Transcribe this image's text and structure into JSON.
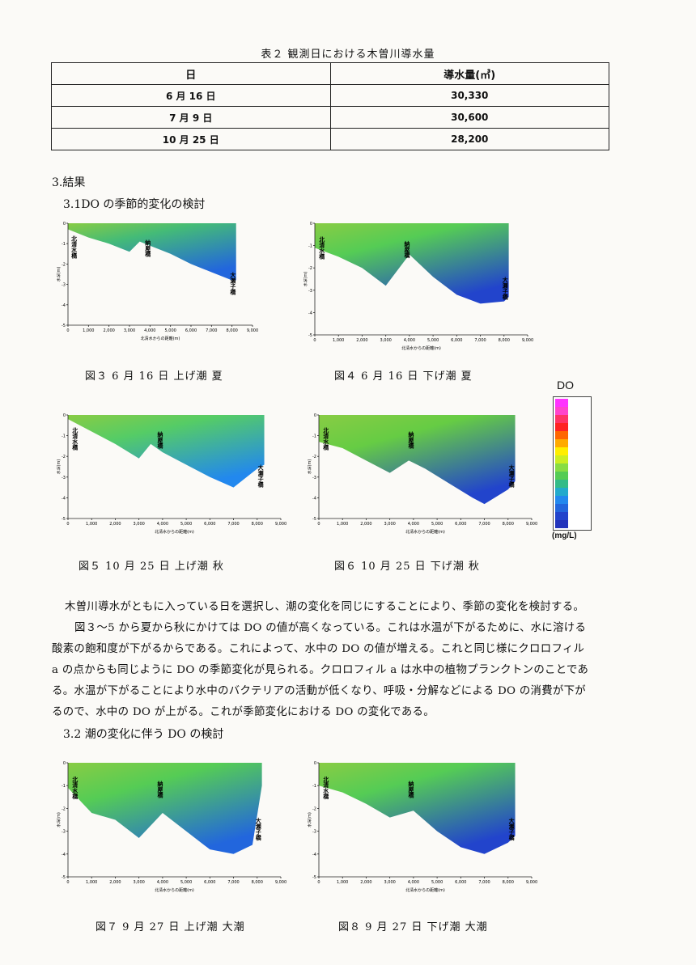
{
  "table2": {
    "caption": "表２ 観測日における木曽川導水量",
    "headers": [
      "日",
      "導水量(㎥)"
    ],
    "rows": [
      {
        "date": "6 月 16 日",
        "volume": "30,330"
      },
      {
        "date": "7 月 9 日",
        "volume": "30,600"
      },
      {
        "date": "10 月 25 日",
        "volume": "28,200"
      }
    ]
  },
  "sections": {
    "results": "3.結果",
    "s31": "3.1DO の季節的変化の検討",
    "s32": "3.2 潮の変化に伴う DO の検討"
  },
  "figures": [
    {
      "caption": "図３ 6 月 16 日 上げ潮 夏"
    },
    {
      "caption": "図４ 6 月 16 日 下げ潮 夏"
    },
    {
      "caption": "図５ 10 月 25 日 上げ潮 秋"
    },
    {
      "caption": "図６ 10 月 25 日 下げ潮 秋"
    },
    {
      "caption": "図７ 9 月 27 日 上げ潮 大潮"
    },
    {
      "caption": "図８ 9 月 27 日 下げ潮 大潮"
    }
  ],
  "chart_labels": {
    "kitashimizu": "北清水橋",
    "noya": "納屋橋",
    "osezoko": "大瀬子橋",
    "xlabel": "北清水からの距離(m)",
    "ylabel": "水深(m)"
  },
  "legend": {
    "title": "DO",
    "unit": "(mg/L)",
    "colors": [
      "#ff33ff",
      "#ff44cc",
      "#ff3366",
      "#ff2222",
      "#ff6600",
      "#ffaa00",
      "#ffee00",
      "#ccee22",
      "#88dd44",
      "#55cc55",
      "#33bb88",
      "#22aacc",
      "#2288ee",
      "#2266dd",
      "#2244cc",
      "#2233bb"
    ]
  },
  "paragraph": {
    "lines": [
      "木曽川導水がともに入っている日を選択し、潮の変化を同じにすることにより、季節の変化を検討する。",
      "図３～5 から夏から秋にかけては DO の値が高くなっている。これは水温が下がるために、水に溶ける",
      "酸素の飽和度が下がるからである。これによって、水中の DO の値が増える。これと同じ様にクロロフィル",
      "a の点からも同じように DO の季節変化が見られる。クロロフィル a は水中の植物プランクトンのことであ",
      "る。水温が下がることにより水中のバクテリアの活動が低くなり、呼吸・分解などによる DO の消費が下が",
      "るので、水中の DO が上がる。これが季節変化における DO の変化である。"
    ]
  },
  "chart_data": [
    {
      "type": "heatmap",
      "name": "fig3",
      "x_ticks": [
        "0",
        "1,000",
        "2,000",
        "3,000",
        "4,000",
        "5,000",
        "6,000",
        "7,000",
        "8,000",
        "9,000"
      ],
      "y_ticks": [
        "0",
        "-1",
        "-2",
        "-3",
        "-4",
        "-5"
      ],
      "xlim": [
        0,
        9000
      ],
      "ylim": [
        -5,
        0
      ],
      "bottom": [
        [
          0,
          -0.3
        ],
        [
          1000,
          -0.7
        ],
        [
          2000,
          -1.0
        ],
        [
          3000,
          -1.4
        ],
        [
          3500,
          -0.9
        ],
        [
          4000,
          -1.1
        ],
        [
          5000,
          -1.5
        ],
        [
          6000,
          -2.0
        ],
        [
          7000,
          -2.4
        ],
        [
          8000,
          -2.8
        ],
        [
          8200,
          -2.8
        ]
      ],
      "mid": "#44bb77",
      "deep": "#2266dd"
    },
    {
      "type": "heatmap",
      "name": "fig4",
      "x_ticks": [
        "0",
        "1,000",
        "2,000",
        "3,000",
        "4,000",
        "5,000",
        "6,000",
        "7,000",
        "8,000",
        "9,000"
      ],
      "y_ticks": [
        "0",
        "-1",
        "-2",
        "-3",
        "-4",
        "-5"
      ],
      "xlim": [
        0,
        9000
      ],
      "ylim": [
        -5,
        0
      ],
      "bottom": [
        [
          0,
          -1.1
        ],
        [
          1000,
          -1.5
        ],
        [
          2000,
          -2.0
        ],
        [
          3000,
          -2.8
        ],
        [
          4000,
          -1.4
        ],
        [
          5000,
          -2.4
        ],
        [
          6000,
          -3.2
        ],
        [
          7000,
          -3.6
        ],
        [
          8000,
          -3.5
        ],
        [
          8200,
          -3.3
        ]
      ],
      "mid": "#55cc55",
      "deep": "#2244cc"
    },
    {
      "type": "heatmap",
      "name": "fig5",
      "x_ticks": [
        "0",
        "1,000",
        "2,000",
        "3,000",
        "4,000",
        "5,000",
        "6,000",
        "7,000",
        "8,000",
        "9,000"
      ],
      "y_ticks": [
        "0",
        "-1",
        "-2",
        "-3",
        "-4",
        "-5"
      ],
      "xlim": [
        0,
        9000
      ],
      "ylim": [
        -5,
        0
      ],
      "bottom": [
        [
          0,
          -0.2
        ],
        [
          1000,
          -0.8
        ],
        [
          2000,
          -1.4
        ],
        [
          3000,
          -2.1
        ],
        [
          3500,
          -1.4
        ],
        [
          4000,
          -1.8
        ],
        [
          5000,
          -2.4
        ],
        [
          6000,
          -3.0
        ],
        [
          7000,
          -3.5
        ],
        [
          8000,
          -2.6
        ],
        [
          8300,
          -2.4
        ]
      ],
      "mid": "#55cc66",
      "deep": "#2288ee"
    },
    {
      "type": "heatmap",
      "name": "fig6",
      "x_ticks": [
        "0",
        "1,000",
        "2,000",
        "3,000",
        "4,000",
        "5,000",
        "6,000",
        "7,000",
        "8,000",
        "9,000"
      ],
      "y_ticks": [
        "0",
        "-1",
        "-2",
        "-3",
        "-4",
        "-5"
      ],
      "xlim": [
        0,
        9000
      ],
      "ylim": [
        -5,
        0
      ],
      "bottom": [
        [
          0,
          -1.3
        ],
        [
          1000,
          -1.6
        ],
        [
          2000,
          -2.2
        ],
        [
          3000,
          -2.8
        ],
        [
          3800,
          -2.2
        ],
        [
          4500,
          -2.6
        ],
        [
          5500,
          -3.3
        ],
        [
          6500,
          -4.0
        ],
        [
          7000,
          -4.3
        ],
        [
          8000,
          -3.6
        ],
        [
          8300,
          -3.2
        ]
      ],
      "mid": "#66cc44",
      "deep": "#2244cc"
    },
    {
      "type": "heatmap",
      "name": "fig7",
      "x_ticks": [
        "0",
        "1,000",
        "2,000",
        "3,000",
        "4,000",
        "5,000",
        "6,000",
        "7,000",
        "8,000",
        "9,000"
      ],
      "y_ticks": [
        "0",
        "-1",
        "-2",
        "-3",
        "-4",
        "-5"
      ],
      "xlim": [
        0,
        9000
      ],
      "ylim": [
        -5,
        0
      ],
      "bottom": [
        [
          0,
          -1.1
        ],
        [
          1000,
          -2.2
        ],
        [
          2000,
          -2.5
        ],
        [
          3000,
          -3.3
        ],
        [
          4000,
          -2.2
        ],
        [
          5000,
          -3.0
        ],
        [
          6000,
          -3.8
        ],
        [
          7000,
          -4.0
        ],
        [
          7800,
          -3.6
        ],
        [
          8200,
          -1.0
        ]
      ],
      "mid": "#55cc55",
      "deep": "#2266dd"
    },
    {
      "type": "heatmap",
      "name": "fig8",
      "x_ticks": [
        "0",
        "1,000",
        "2,000",
        "3,000",
        "4,000",
        "5,000",
        "6,000",
        "7,000",
        "8,000",
        "9,000"
      ],
      "y_ticks": [
        "0",
        "-1",
        "-2",
        "-3",
        "-4",
        "-5"
      ],
      "xlim": [
        0,
        9000
      ],
      "ylim": [
        -5,
        0
      ],
      "bottom": [
        [
          0,
          -1.0
        ],
        [
          1000,
          -1.3
        ],
        [
          2000,
          -1.8
        ],
        [
          3000,
          -2.4
        ],
        [
          4000,
          -2.1
        ],
        [
          5000,
          -3.0
        ],
        [
          6000,
          -3.7
        ],
        [
          7000,
          -4.0
        ],
        [
          8000,
          -3.5
        ],
        [
          8300,
          -3.2
        ]
      ],
      "mid": "#55cc55",
      "deep": "#2244cc"
    }
  ]
}
